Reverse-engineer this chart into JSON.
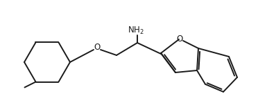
{
  "bg_color": "#ffffff",
  "line_color": "#1a1a1a",
  "line_width": 1.4,
  "text_color": "#1a1a1a",
  "nh2_label": "NH$_2$",
  "o_label": "O",
  "font_size": 8.5
}
